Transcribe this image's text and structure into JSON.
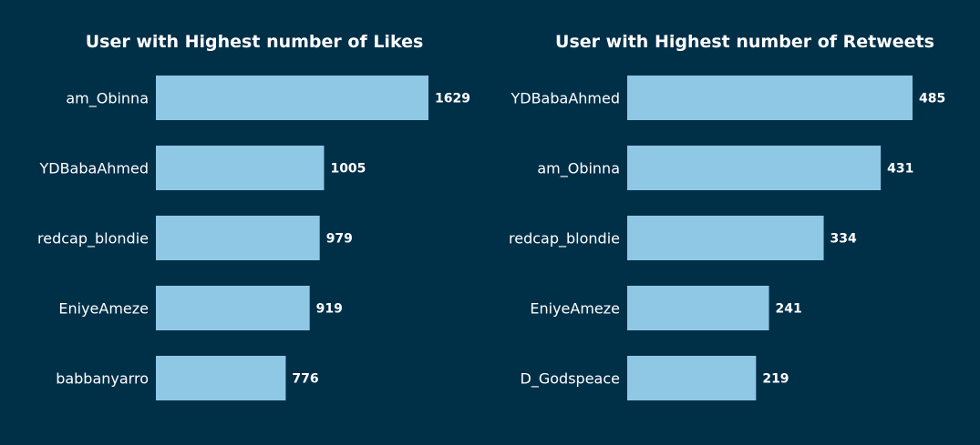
{
  "colors": {
    "background": "#002F48",
    "bar": "#8FC8E5",
    "text": "#FFFFFF"
  },
  "chart_data": [
    {
      "type": "bar",
      "orientation": "horizontal",
      "title": "User with Highest number of Likes",
      "categories": [
        "am_Obinna",
        "YDBabaAhmed",
        "redcap_blondie",
        "EniyeAmeze",
        "babbanyarro"
      ],
      "values": [
        1629,
        1005,
        979,
        919,
        776
      ],
      "data_labels": true,
      "grid": false,
      "legend": "none"
    },
    {
      "type": "bar",
      "orientation": "horizontal",
      "title": "User with Highest number of Retweets",
      "categories": [
        "YDBabaAhmed",
        "am_Obinna",
        "redcap_blondie",
        "EniyeAmeze",
        "D_Godspeace"
      ],
      "values": [
        485,
        431,
        334,
        241,
        219
      ],
      "data_labels": true,
      "grid": false,
      "legend": "none"
    }
  ]
}
